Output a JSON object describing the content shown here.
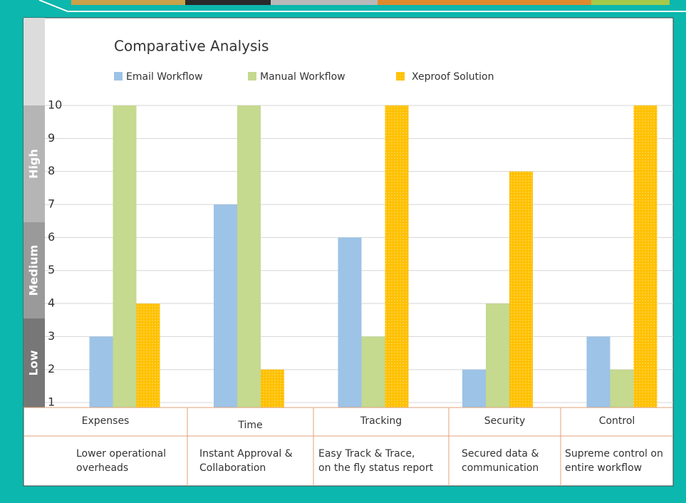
{
  "chart_data": {
    "type": "bar",
    "title": "Comparative Analysis",
    "categories": [
      "Expenses",
      "Time",
      "Tracking",
      "Security",
      "Control"
    ],
    "descriptions": [
      [
        "Lower operational",
        "overheads"
      ],
      [
        "Instant Approval &",
        "Collaboration"
      ],
      [
        "Easy Track & Trace,",
        "on the fly status report"
      ],
      [
        "Secured data &",
        "communication"
      ],
      [
        "Supreme control on",
        "entire workflow"
      ]
    ],
    "series": [
      {
        "name": "Email Workflow",
        "color": "#9dc3e6",
        "values": [
          3,
          7,
          6,
          2,
          3
        ]
      },
      {
        "name": "Manual Workflow",
        "color": "#c5d98f",
        "values": [
          10,
          10,
          3,
          4,
          2
        ]
      },
      {
        "name": "Xeproof Solution",
        "color": "#ffc000",
        "values": [
          4,
          2,
          10,
          8,
          10
        ]
      }
    ],
    "bands": [
      "High",
      "Medium",
      "Low"
    ],
    "ylim": [
      0.85,
      10
    ],
    "yticks": [
      1,
      2,
      3,
      4,
      5,
      6,
      7,
      8,
      9,
      10
    ],
    "grid": true
  }
}
